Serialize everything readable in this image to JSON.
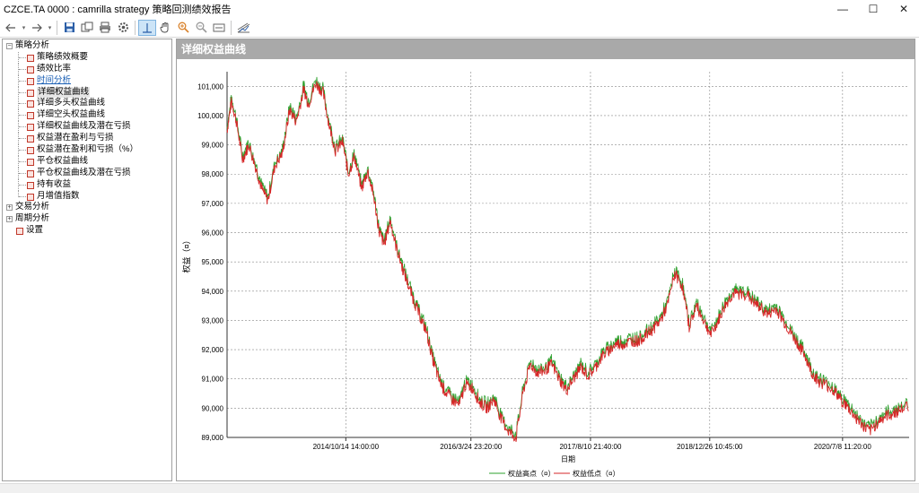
{
  "window": {
    "title": "CZCE.TA 0000 : camrilla strategy 策略回测绩效报告",
    "minimize": "—",
    "maximize": "☐",
    "close": "✕"
  },
  "toolbar": {
    "icons": [
      "arrow-left-icon",
      "dropdown-icon",
      "arrow-right-icon",
      "dropdown-icon",
      "save-icon",
      "copy-icon",
      "print-icon",
      "settings-icon",
      "crosshair-icon",
      "hand-icon",
      "zoom-in-icon",
      "zoom-out-icon",
      "fit-icon",
      "chart-style-icon"
    ]
  },
  "tree": {
    "strategy": "策略分析",
    "children": [
      "策略绩效概要",
      "绩效比率",
      "时间分析",
      "详细权益曲线",
      "详细多头权益曲线",
      "详细空头权益曲线",
      "详细权益曲线及潜在亏损",
      "权益潜在盈利与亏损",
      "权益潜在盈利和亏损（%）",
      "平仓权益曲线",
      "平仓权益曲线及潜在亏损",
      "持有收益",
      "月增值指数"
    ],
    "selected_index": 3,
    "linked_index": 2,
    "trade": "交易分析",
    "period": "周期分析",
    "settings": "设置"
  },
  "panel": {
    "title": "详细权益曲线"
  },
  "chart_data": {
    "type": "line",
    "ylabel": "权益（¤）",
    "xlabel": "日期",
    "ylim": [
      89000,
      101500
    ],
    "yticks": [
      89000,
      90000,
      91000,
      92000,
      93000,
      94000,
      95000,
      96000,
      97000,
      98000,
      99000,
      100000,
      101000
    ],
    "ytick_labels": [
      "89,000",
      "90,000",
      "91,000",
      "92,000",
      "93,000",
      "94,000",
      "95,000",
      "96,000",
      "97,000",
      "98,000",
      "99,000",
      "100,000",
      "101,000"
    ],
    "xlim": [
      "2013-06-01",
      "2021-04-15"
    ],
    "xticks": [
      "2014-10-14 14:00",
      "2016-03-24 23:20",
      "2017-08-10 21:40",
      "2018-12-26 10:45",
      "2020-07-08 11:20"
    ],
    "xtick_labels": [
      "2014/10/14 14:00:00",
      "2016/3/24 23:20:00",
      "2017/8/10 21:40:00",
      "2018/12/26 10:45:00",
      "2020/7/8 11:20:00"
    ],
    "grid": true,
    "legend": "bottom",
    "series": [
      {
        "name": "权益高点（¤）",
        "color": "#2ca02c",
        "note": "high"
      },
      {
        "name": "权益低点（¤）",
        "color": "#d62728",
        "note": "low"
      }
    ],
    "x": [
      "2013-06-01",
      "2013-06-20",
      "2013-07-10",
      "2013-08-05",
      "2013-09-01",
      "2013-10-01",
      "2013-10-25",
      "2013-11-20",
      "2013-12-20",
      "2014-01-20",
      "2014-02-20",
      "2014-03-20",
      "2014-04-20",
      "2014-05-10",
      "2014-06-10",
      "2014-07-10",
      "2014-08-05",
      "2014-09-01",
      "2014-10-01",
      "2014-10-25",
      "2014-11-20",
      "2014-12-20",
      "2015-01-15",
      "2015-02-10",
      "2015-03-05",
      "2015-03-25",
      "2015-04-20",
      "2015-05-15",
      "2015-06-10",
      "2015-07-05",
      "2015-08-01",
      "2015-08-25",
      "2015-09-20",
      "2015-10-15",
      "2015-11-10",
      "2015-12-05",
      "2016-01-05",
      "2016-02-05",
      "2016-03-01",
      "2016-04-01",
      "2016-05-01",
      "2016-06-01",
      "2016-07-01",
      "2016-08-01",
      "2016-09-01",
      "2016-10-01",
      "2016-11-01",
      "2016-12-01",
      "2017-01-01",
      "2017-02-01",
      "2017-03-01",
      "2017-04-01",
      "2017-05-01",
      "2017-06-01",
      "2017-07-01",
      "2017-08-01",
      "2017-09-01",
      "2017-10-01",
      "2017-11-01",
      "2017-12-01",
      "2018-01-01",
      "2018-02-01",
      "2018-03-01",
      "2018-04-01",
      "2018-05-01",
      "2018-06-01",
      "2018-07-01",
      "2018-08-01",
      "2018-09-01",
      "2018-10-01",
      "2018-11-01",
      "2018-12-01",
      "2019-01-01",
      "2019-02-01",
      "2019-03-01",
      "2019-04-01",
      "2019-05-01",
      "2019-06-01",
      "2019-07-01",
      "2019-08-01",
      "2019-09-01",
      "2019-10-01",
      "2019-11-01",
      "2019-12-01",
      "2020-01-01",
      "2020-02-01",
      "2020-03-01",
      "2020-04-01",
      "2020-05-01",
      "2020-06-01",
      "2020-07-01",
      "2020-08-01",
      "2020-09-01",
      "2020-10-01",
      "2020-11-01",
      "2020-12-01",
      "2021-01-01",
      "2021-02-01",
      "2021-03-01",
      "2021-04-15"
    ],
    "values": [
      99500,
      100500,
      99800,
      98500,
      99000,
      98200,
      97500,
      97100,
      98300,
      98700,
      100200,
      99800,
      100900,
      100400,
      101100,
      100800,
      99700,
      98800,
      99100,
      98000,
      98600,
      97500,
      98100,
      97200,
      96000,
      95600,
      96400,
      95500,
      94800,
      94200,
      93600,
      93100,
      92600,
      91700,
      91000,
      90600,
      90300,
      90100,
      90800,
      90700,
      90200,
      90000,
      90300,
      89600,
      89200,
      89000,
      90600,
      91500,
      91200,
      91300,
      91500,
      91000,
      90600,
      91000,
      91400,
      91100,
      91400,
      91800,
      92000,
      92200,
      92200,
      92300,
      92300,
      92500,
      92700,
      93000,
      93500,
      94600,
      94200,
      92800,
      93500,
      93000,
      92500,
      93000,
      93500,
      93900,
      93900,
      93900,
      93600,
      93400,
      93200,
      93400,
      93000,
      92600,
      92200,
      91800,
      91200,
      90900,
      90800,
      90600,
      90300,
      90000,
      89700,
      89400,
      89200,
      89500,
      89700,
      89800,
      89900,
      90100
    ]
  }
}
